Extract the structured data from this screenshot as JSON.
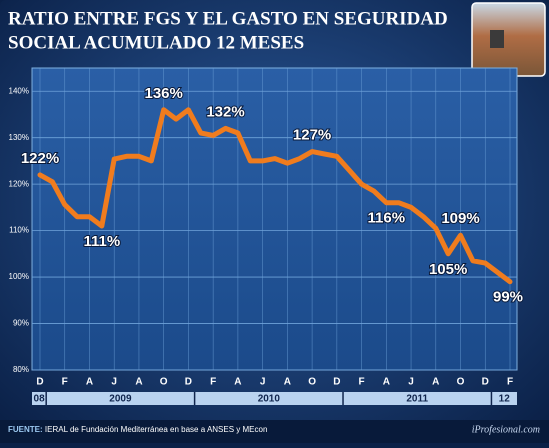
{
  "chart_data": {
    "type": "line",
    "title": [
      "RATIO ENTRE FGS Y EL GASTO EN SEGURIDAD",
      "SOCIAL ACUMULADO 12 MESES"
    ],
    "categories": [
      "D",
      null,
      "F",
      null,
      "A",
      null,
      "J",
      null,
      "A",
      null,
      "O",
      null,
      "D",
      null,
      "F",
      null,
      "A",
      null,
      "J",
      null,
      "A",
      null,
      "O",
      null,
      "D",
      null,
      "F",
      null,
      "A",
      null,
      "J",
      null,
      "A",
      null,
      "O",
      null,
      "D",
      null,
      "F"
    ],
    "years": [
      {
        "label": "08",
        "months": 1
      },
      {
        "label": "2009",
        "months": 12
      },
      {
        "label": "2010",
        "months": 12
      },
      {
        "label": "2011",
        "months": 12
      },
      {
        "label": "12",
        "months": 2
      }
    ],
    "series": [
      {
        "name": "Ratio",
        "color": "#f07c1e",
        "values": [
          122,
          120.5,
          115.6,
          113,
          113,
          111,
          125.4,
          126,
          126,
          125,
          136,
          134,
          136,
          131,
          130.5,
          132,
          131,
          125,
          125,
          125.5,
          124.5,
          125.5,
          127,
          126.5,
          126,
          123,
          120,
          118.5,
          116,
          116,
          115,
          113,
          110.5,
          105,
          109,
          103.5,
          103,
          101,
          99
        ],
        "value_labels": [
          "122%",
          null,
          null,
          null,
          null,
          "111%",
          null,
          null,
          null,
          null,
          "136%",
          null,
          null,
          null,
          null,
          "132%",
          null,
          null,
          null,
          null,
          null,
          null,
          "127%",
          null,
          null,
          null,
          null,
          null,
          "116%",
          null,
          null,
          null,
          null,
          "105%",
          "109%",
          null,
          null,
          null,
          "99%"
        ]
      }
    ],
    "ylim": [
      80,
      145
    ],
    "yticks": [
      {
        "value": 80,
        "label": "80%"
      },
      {
        "value": 90,
        "label": "90%"
      },
      {
        "value": 100,
        "label": "100%"
      },
      {
        "value": 110,
        "label": "110%"
      },
      {
        "value": 120,
        "label": "120%"
      },
      {
        "value": 130,
        "label": "130%"
      },
      {
        "value": 140,
        "label": "140%"
      }
    ],
    "grid": true,
    "source_label": "FUENTE:",
    "source": "IERAL de Fundación Mediterránea en base a ANSES y MEcon",
    "watermark": "iProfesional.com"
  }
}
